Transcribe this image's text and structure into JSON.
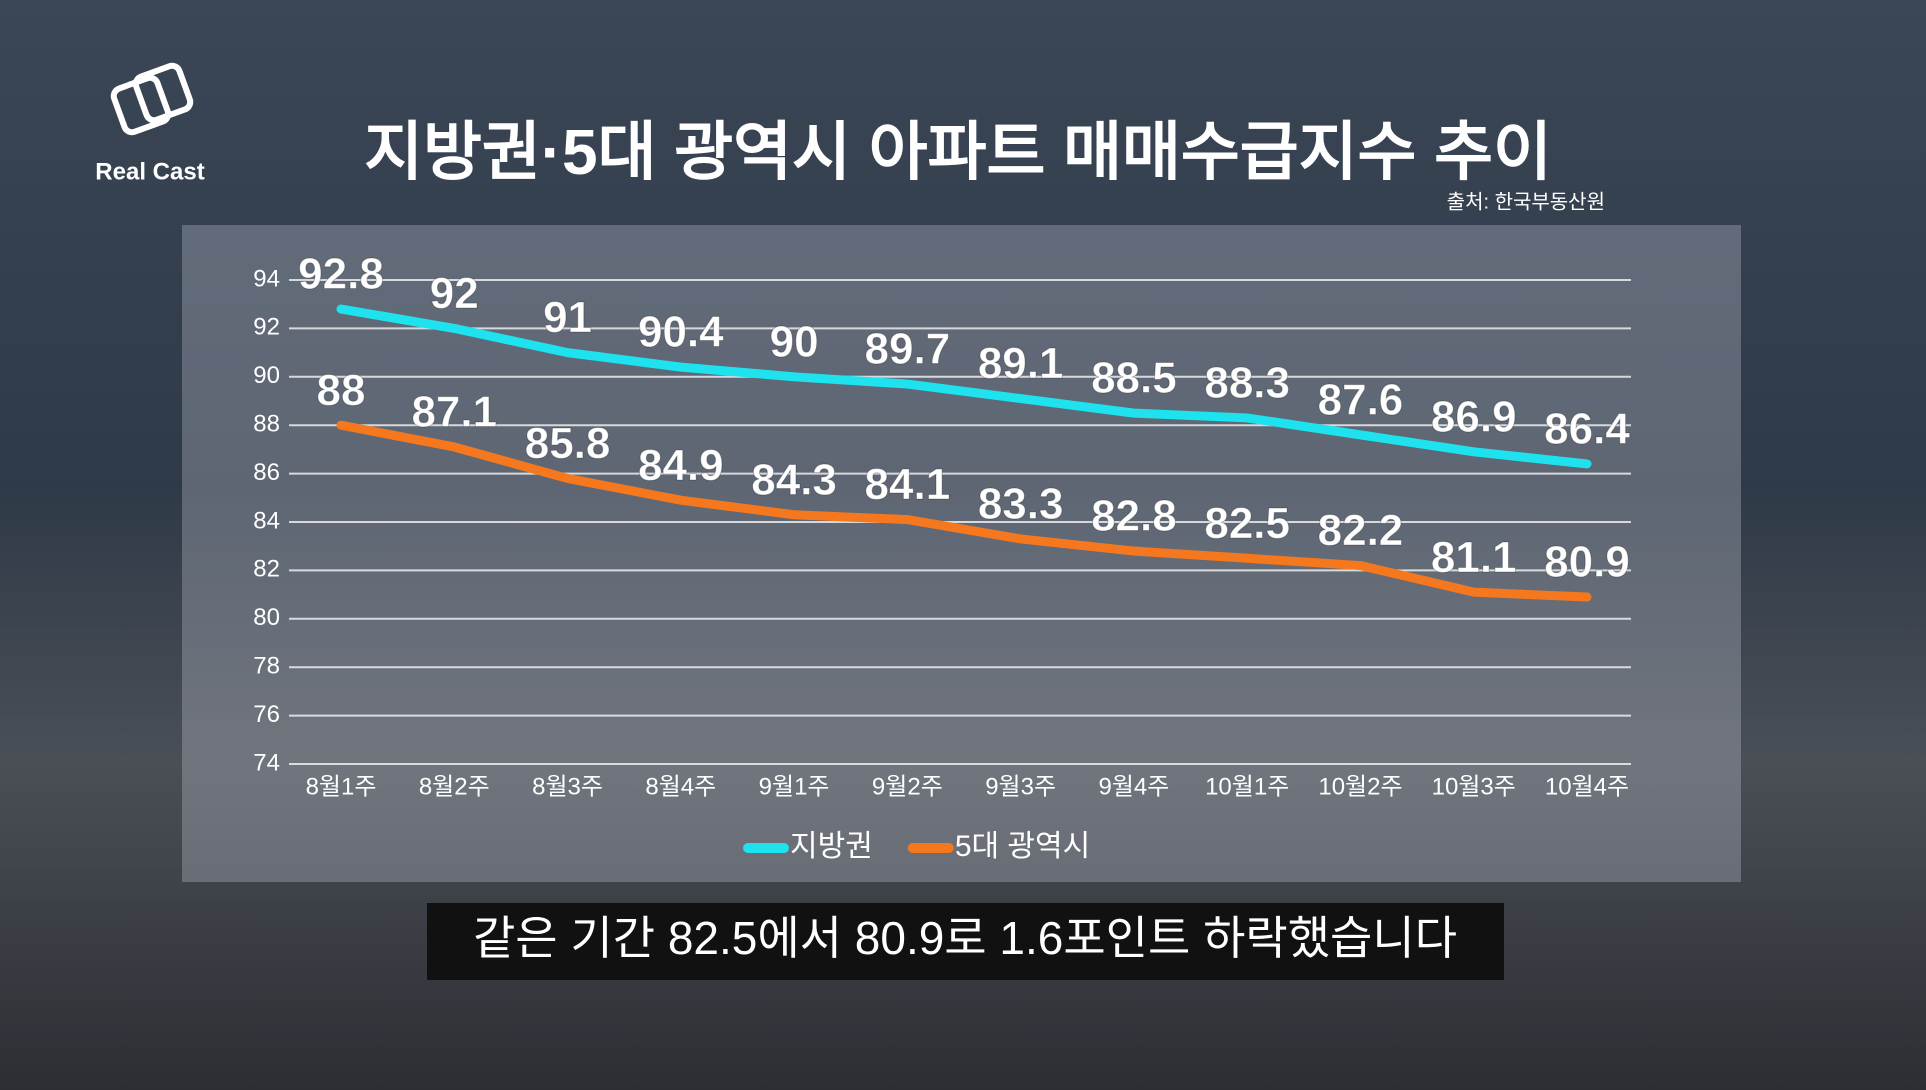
{
  "brand": "Real Cast",
  "caption": "같은 기간 82.5에서 80.9로 1.6포인트 하락했습니다",
  "chart_data": {
    "type": "line",
    "title": "지방권·5대 광역시 아파트 매매수급지수 추이",
    "source": "출처: 한국부동산원",
    "categories": [
      "8월1주",
      "8월2주",
      "8월3주",
      "8월4주",
      "9월1주",
      "9월2주",
      "9월3주",
      "9월4주",
      "10월1주",
      "10월2주",
      "10월3주",
      "10월4주"
    ],
    "series": [
      {
        "name": "지방권",
        "color": "#1ee3ee",
        "values": [
          92.8,
          92,
          91,
          90.4,
          90,
          89.7,
          89.1,
          88.5,
          88.3,
          87.6,
          86.9,
          86.4
        ]
      },
      {
        "name": "5대 광역시",
        "color": "#f5781e",
        "values": [
          88,
          87.1,
          85.8,
          84.9,
          84.3,
          84.1,
          83.3,
          82.8,
          82.5,
          82.2,
          81.1,
          80.9
        ]
      }
    ],
    "ylim": [
      74,
      94
    ],
    "yticks": [
      74,
      76,
      78,
      80,
      82,
      84,
      86,
      88,
      90,
      92,
      94
    ],
    "grid": true,
    "legend": "bottom"
  }
}
